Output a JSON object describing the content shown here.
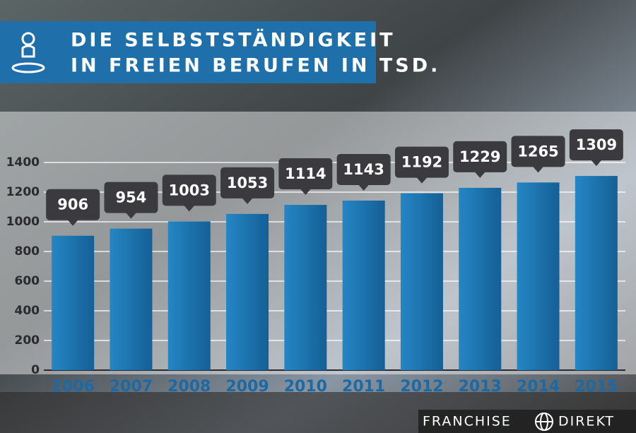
{
  "chart_data": {
    "type": "bar",
    "title": [
      "DIE SELBSTSTÄNDIGKEIT",
      "IN FREIEN BERUFEN IN TSD."
    ],
    "categories": [
      "2006",
      "2007",
      "2008",
      "2009",
      "2010",
      "2011",
      "2012",
      "2013",
      "2014",
      "2015"
    ],
    "values": [
      906,
      954,
      1003,
      1053,
      1114,
      1143,
      1192,
      1229,
      1265,
      1309
    ],
    "color": "#1b75b3",
    "ylim": [
      0,
      1400
    ],
    "yticks": [
      0,
      200,
      400,
      600,
      800,
      1000,
      1200,
      1400
    ],
    "grid": true
  },
  "footer": {
    "brand_left": "FRANCHISE",
    "brand_right": "DIREKT"
  }
}
